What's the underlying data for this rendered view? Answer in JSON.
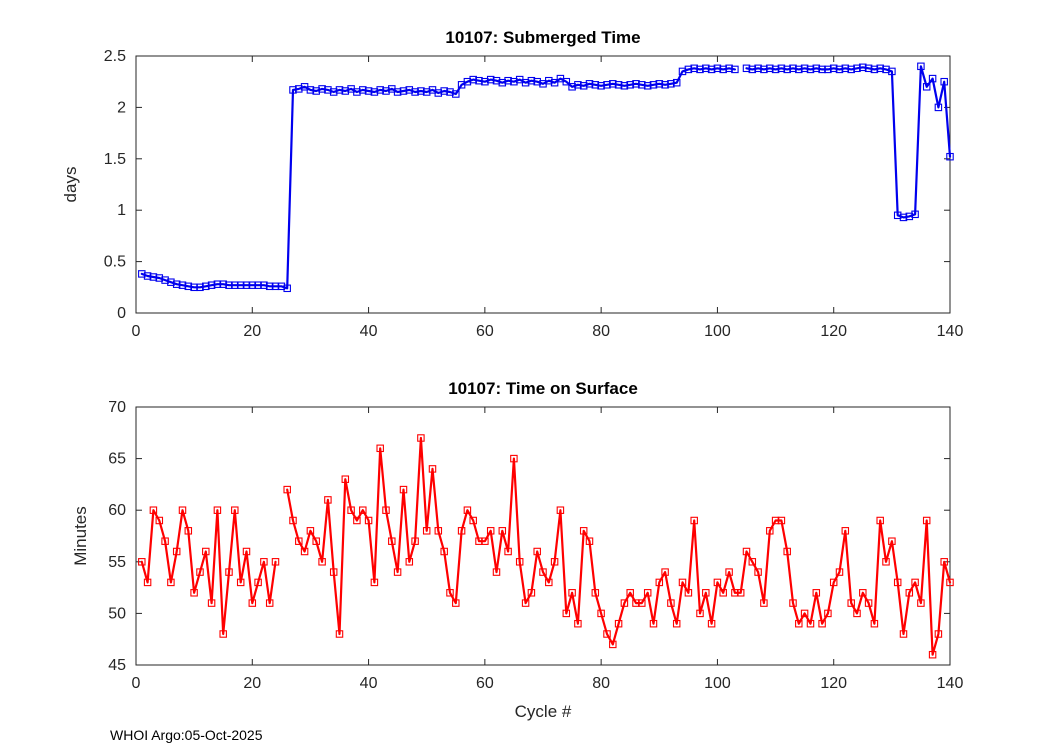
{
  "footer": {
    "credit": "WHOI Argo:05-Oct-2025"
  },
  "chart_data": [
    {
      "type": "line",
      "title": "10107: Submerged Time",
      "xlabel": "",
      "ylabel": "days",
      "xlim": [
        0,
        140
      ],
      "ylim": [
        0,
        2.5
      ],
      "xticks": [
        0,
        20,
        40,
        60,
        80,
        100,
        120,
        140
      ],
      "yticks": [
        0,
        0.5,
        1,
        1.5,
        2,
        2.5
      ],
      "color": "#0000ee",
      "marker": "square",
      "x_start": 1,
      "x_step": 1,
      "y": [
        0.38,
        0.36,
        0.35,
        0.34,
        0.32,
        0.3,
        0.28,
        0.27,
        0.26,
        0.25,
        0.25,
        0.26,
        0.27,
        0.28,
        0.28,
        0.27,
        0.27,
        0.27,
        0.27,
        0.27,
        0.27,
        0.27,
        0.26,
        0.26,
        0.26,
        0.24,
        2.17,
        2.18,
        2.2,
        2.17,
        2.16,
        2.18,
        2.17,
        2.15,
        2.17,
        2.16,
        2.18,
        2.15,
        2.17,
        2.16,
        2.15,
        2.17,
        2.16,
        2.18,
        2.15,
        2.16,
        2.17,
        2.15,
        2.16,
        2.15,
        2.17,
        2.14,
        2.16,
        2.15,
        2.13,
        2.22,
        2.25,
        2.27,
        2.26,
        2.25,
        2.27,
        2.26,
        2.24,
        2.26,
        2.25,
        2.27,
        2.24,
        2.26,
        2.25,
        2.23,
        2.26,
        2.24,
        2.28,
        2.25,
        2.2,
        2.22,
        2.21,
        2.23,
        2.22,
        2.21,
        2.22,
        2.23,
        2.22,
        2.21,
        2.22,
        2.23,
        2.22,
        2.21,
        2.22,
        2.23,
        2.22,
        2.23,
        2.24,
        2.35,
        2.37,
        2.38,
        2.37,
        2.38,
        2.37,
        2.38,
        2.37,
        2.38,
        2.37,
        null,
        2.38,
        2.37,
        2.38,
        2.37,
        2.38,
        2.37,
        2.38,
        2.37,
        2.38,
        2.37,
        2.38,
        2.37,
        2.38,
        2.37,
        2.37,
        2.38,
        2.37,
        2.38,
        2.37,
        2.38,
        2.39,
        2.38,
        2.37,
        2.38,
        2.37,
        2.35,
        0.95,
        0.93,
        0.94,
        0.96,
        2.4,
        2.2,
        2.28,
        2.0,
        2.25,
        1.52
      ]
    },
    {
      "type": "line",
      "title": "10107: Time on Surface",
      "xlabel": "Cycle #",
      "ylabel": "Minutes",
      "xlim": [
        0,
        140
      ],
      "ylim": [
        45,
        70
      ],
      "xticks": [
        0,
        20,
        40,
        60,
        80,
        100,
        120,
        140
      ],
      "yticks": [
        45,
        50,
        55,
        60,
        65,
        70
      ],
      "color": "#ff0000",
      "marker": "square",
      "x_start": 1,
      "x_step": 1,
      "y": [
        55,
        53,
        60,
        59,
        57,
        53,
        56,
        60,
        58,
        52,
        54,
        56,
        51,
        60,
        48,
        54,
        60,
        53,
        56,
        51,
        53,
        55,
        51,
        55,
        null,
        62,
        59,
        57,
        56,
        58,
        57,
        55,
        61,
        54,
        48,
        63,
        60,
        59,
        60,
        59,
        53,
        66,
        60,
        57,
        54,
        62,
        55,
        57,
        67,
        58,
        64,
        58,
        56,
        52,
        51,
        58,
        60,
        59,
        57,
        57,
        58,
        54,
        58,
        56,
        65,
        55,
        51,
        52,
        56,
        54,
        53,
        55,
        60,
        50,
        52,
        49,
        58,
        57,
        52,
        50,
        48,
        47,
        49,
        51,
        52,
        51,
        51,
        52,
        49,
        53,
        54,
        51,
        49,
        53,
        52,
        59,
        50,
        52,
        49,
        53,
        52,
        54,
        52,
        52,
        56,
        55,
        54,
        51,
        58,
        59,
        59,
        56,
        51,
        49,
        50,
        49,
        52,
        49,
        50,
        53,
        54,
        58,
        51,
        50,
        52,
        51,
        49,
        59,
        55,
        57,
        53,
        48,
        52,
        53,
        51,
        59,
        46,
        48,
        55,
        53
      ]
    }
  ]
}
